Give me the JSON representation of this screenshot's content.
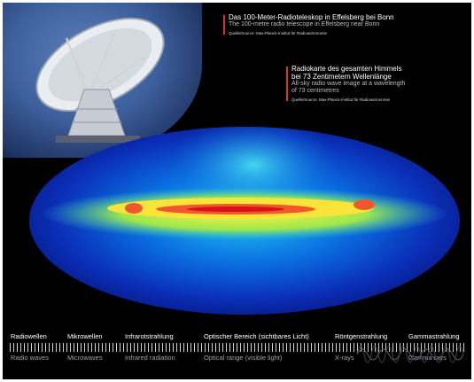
{
  "captions": {
    "telescope": {
      "title_de": "Das 100-Meter-Radioteleskop in Effelsberg bei Bonn",
      "title_en": "The 100-metre radio telescope in Effelsberg near Bonn",
      "source": "Quelle/Source: Max-Planck-Institut für Radioastronomie"
    },
    "skymap": {
      "title_de_1": "Radiokarte des gesamten Himmels",
      "title_de_2": "bei 73 Zentimetern Wellenlänge",
      "title_en_1": "All-sky radio wave image at a wavelength",
      "title_en_2": "of 73 centimetres",
      "source": "Quelle/Source: Max-Planck-Institut für Radioastronomie"
    }
  },
  "spectrum": {
    "bands": [
      {
        "de": "Radiowellen",
        "en": "Radio waves"
      },
      {
        "de": "Mikrowellen",
        "en": "Microwaves"
      },
      {
        "de": "Infrarotstrahlung",
        "en": "Infrared radiation"
      },
      {
        "de": "Optischer Bereich (sichtbares Licht)",
        "en": "Optical range (visible light)"
      },
      {
        "de": "Röntgenstrahlung",
        "en": "X-rays"
      },
      {
        "de": "Gammastrahlung",
        "en": "Gamma rays"
      }
    ]
  }
}
